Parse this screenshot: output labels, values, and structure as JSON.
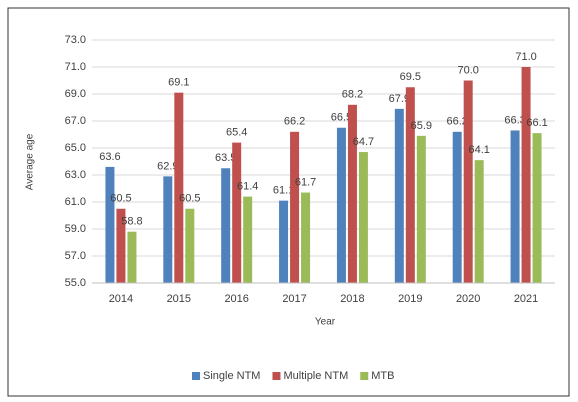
{
  "chart_data": {
    "type": "bar",
    "x_label": "Year",
    "y_label": "Average age",
    "categories": [
      "2014",
      "2015",
      "2016",
      "2017",
      "2018",
      "2019",
      "2020",
      "2021"
    ],
    "series": [
      {
        "name": "Single NTM",
        "color": "#4f81bd",
        "values": [
          63.6,
          62.9,
          63.5,
          61.1,
          66.5,
          67.9,
          66.2,
          66.3
        ],
        "value_labels": [
          "63.6",
          "62.9",
          "63.5",
          "61.1",
          "66.5",
          "67.9",
          "66.2",
          "66.3"
        ]
      },
      {
        "name": "Multiple NTM",
        "color": "#c0504d",
        "values": [
          60.5,
          69.1,
          65.4,
          66.2,
          68.2,
          69.5,
          70.0,
          71.0
        ],
        "value_labels": [
          "60.5",
          "69.1",
          "65.4",
          "66.2",
          "68.2",
          "69.5",
          "70.0",
          "71.0"
        ]
      },
      {
        "name": "MTB",
        "color": "#9bbb59",
        "values": [
          58.8,
          60.5,
          61.4,
          61.7,
          64.7,
          65.9,
          64.1,
          66.1
        ],
        "value_labels": [
          "58.8",
          "60.5",
          "61.4",
          "61.7",
          "64.7",
          "65.9",
          "64.1",
          "66.1"
        ]
      }
    ],
    "ylim": [
      55,
      73
    ],
    "yticks": [
      {
        "value": 55,
        "label": "55.0"
      },
      {
        "value": 57,
        "label": "57.0"
      },
      {
        "value": 59,
        "label": "59.0"
      },
      {
        "value": 61,
        "label": "61.0"
      },
      {
        "value": 63,
        "label": "63.0"
      },
      {
        "value": 65,
        "label": "65.0"
      },
      {
        "value": 67,
        "label": "67.0"
      },
      {
        "value": 69,
        "label": "69.0"
      },
      {
        "value": 71,
        "label": "71.0"
      },
      {
        "value": 73,
        "label": "73.0"
      }
    ],
    "grid": true,
    "legend": "bottom"
  }
}
